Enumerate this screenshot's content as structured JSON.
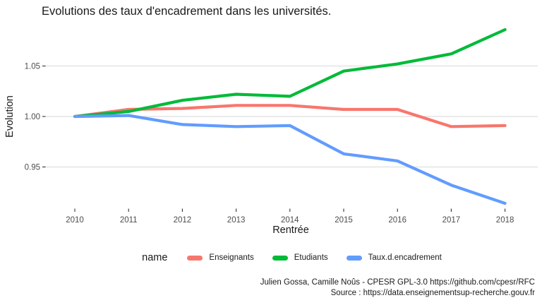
{
  "chart_data": {
    "type": "line",
    "title": "Evolutions des taux d'encadrement dans les universités.",
    "xlabel": "Rentrée",
    "ylabel": "Evolution",
    "x": [
      2010,
      2011,
      2012,
      2013,
      2014,
      2015,
      2016,
      2017,
      2018
    ],
    "x_tick_labels": [
      "2010",
      "2011",
      "2012",
      "2013",
      "2014",
      "2015",
      "2016",
      "2017",
      "2018"
    ],
    "yticks": [
      {
        "value": 0.95,
        "label": "0.95"
      },
      {
        "value": 1.0,
        "label": "1.00"
      },
      {
        "value": 1.05,
        "label": "1.05"
      }
    ],
    "ylim": [
      0.905,
      1.092
    ],
    "grid": "horizontal-only",
    "legend_title": "name",
    "legend_position": "bottom",
    "series": [
      {
        "name": "Enseignants",
        "color": "#F8766D",
        "values": [
          1.0,
          1.007,
          1.008,
          1.011,
          1.011,
          1.007,
          1.007,
          0.99,
          0.991
        ]
      },
      {
        "name": "Etudiants",
        "color": "#00BA38",
        "values": [
          1.0,
          1.005,
          1.016,
          1.022,
          1.02,
          1.045,
          1.052,
          1.062,
          1.086
        ]
      },
      {
        "name": "Taux.d.encadrement",
        "color": "#619CFF",
        "values": [
          1.0,
          1.001,
          0.992,
          0.99,
          0.991,
          0.963,
          0.956,
          0.932,
          0.914
        ]
      }
    ]
  },
  "colors": {
    "grid": "#E4E4E4",
    "tick_mark": "#333333",
    "axis_text": "#4D4D4D",
    "text": "#1A1A1A"
  },
  "caption": {
    "line1": "Julien Gossa, Camille Noûs - CPESR GPL-3.0 https://github.com/cpesr/RFC",
    "line2": "Source : https://data.enseignementsup-recherche.gouv.fr"
  }
}
